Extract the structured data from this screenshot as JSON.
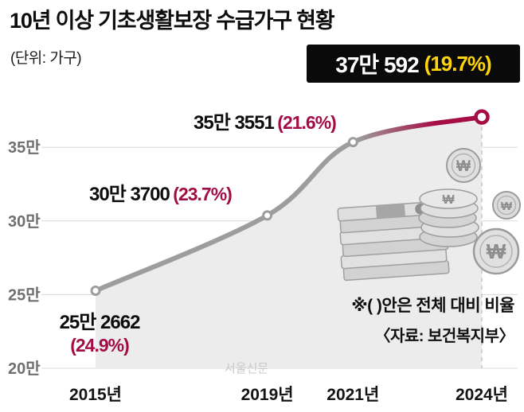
{
  "title": "10년 이상 기초생활보장 수급가구 현황",
  "unit_label": "(단위: 가구)",
  "callout": {
    "value": "37만 592",
    "pct": "(19.7%)"
  },
  "labels": {
    "p2015": {
      "value": "25만 2662",
      "pct": "(24.9%)"
    },
    "p2019": {
      "value": "30만 3700",
      "pct": "(23.7%)"
    },
    "p2021": {
      "value": "35만 3551",
      "pct": "(21.6%)"
    }
  },
  "note": "※( )안은 전체 대비 비율",
  "source": "〈자료: 보건복지부〉",
  "watermark": "서울신문",
  "y_axis": [
    "35만",
    "30만",
    "25만",
    "20만"
  ],
  "x_axis": [
    "2015년",
    "2019년",
    "2021년",
    "2024년"
  ],
  "icons": {
    "won": "₩"
  },
  "chart_data": {
    "type": "area",
    "title": "10년 이상 기초생활보장 수급가구 현황",
    "unit": "가구",
    "x": [
      2015,
      2019,
      2021,
      2024
    ],
    "values": [
      252662,
      303700,
      353551,
      370592
    ],
    "percent_of_total": [
      24.9,
      23.7,
      21.6,
      19.7
    ],
    "value_labels": [
      "25만 2662",
      "30만 3700",
      "35만 3551",
      "37만 592"
    ],
    "ylim": [
      200000,
      380000
    ],
    "yticks": [
      200000,
      250000,
      300000,
      350000
    ],
    "ytick_labels": [
      "20만",
      "25만",
      "30만",
      "35만"
    ],
    "grid": "horizontal",
    "legend": "none",
    "colors": {
      "line_gray": "#9d9d9d",
      "line_accent": "#a50d45",
      "area": "#ececec",
      "grid_line": "#d8d8d8",
      "callout_bg": "#0a0a0a",
      "callout_accent": "#ffd40a",
      "percent_text": "#a30d45"
    }
  }
}
